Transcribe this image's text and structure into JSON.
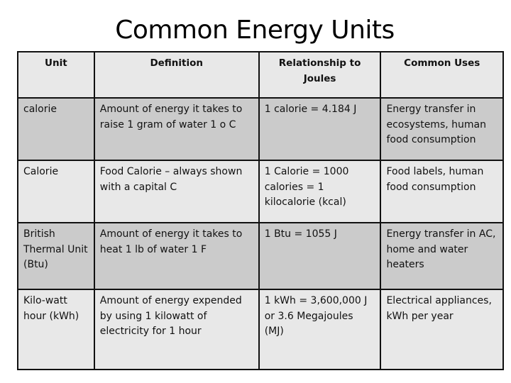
{
  "title": "Common Energy Units",
  "headers": [
    "Unit",
    "Definition",
    "Relationship to Joules",
    "Common Uses"
  ],
  "rows": [
    [
      "calorie",
      "Amount of energy it takes to raise 1 gram of water 1 o C",
      "1 calorie = 4.184 J",
      "Energy transfer in ecosystems, human food consumption"
    ],
    [
      "Calorie",
      "Food Calorie – always shown with a capital C",
      "1 Calorie = 1000 calories = 1 kilocalorie (kcal)",
      "Food labels, human food consumption"
    ],
    [
      "British Thermal Unit (Btu)",
      "Amount of energy it takes to heat 1 lb of water 1 F",
      "1 Btu = 1055 J",
      "Energy transfer in AC, home and water heaters"
    ],
    [
      "Kilo-watt hour (kWh)",
      "Amount of energy expended by using 1 kilowatt of electricity for 1 hour",
      "1 kWh = 3,600,000 J or 3.6 Megajoules (MJ)",
      "Electrical appliances, kWh per year"
    ]
  ]
}
